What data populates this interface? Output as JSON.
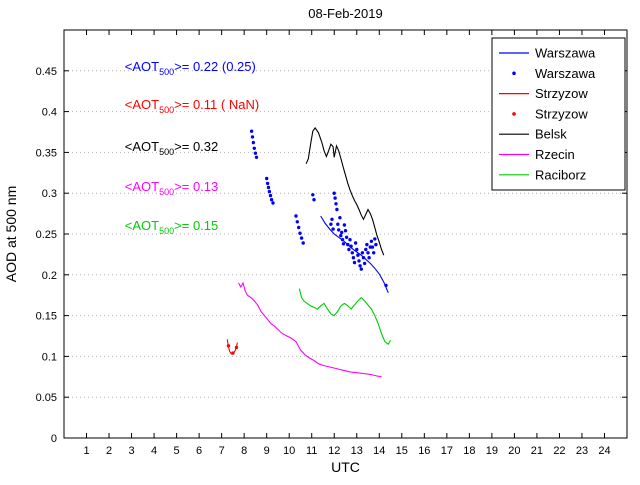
{
  "figure": {
    "title": "08-Feb-2019"
  },
  "chart_data": {
    "type": "line",
    "title": "08-Feb-2019",
    "xlabel": "UTC",
    "ylabel": "AOD at 500 nm",
    "xlim": [
      0,
      25
    ],
    "ylim": [
      0,
      0.5
    ],
    "xticks": [
      1,
      2,
      3,
      4,
      5,
      6,
      7,
      8,
      9,
      10,
      11,
      12,
      13,
      14,
      15,
      16,
      17,
      18,
      19,
      20,
      21,
      22,
      23,
      24
    ],
    "ytick_values": [
      0,
      0.05,
      0.1,
      0.15,
      0.2,
      0.25,
      0.3,
      0.35,
      0.4,
      0.45
    ],
    "ytick_labels": [
      "0",
      "0.05",
      "0.1",
      "0.15",
      "0.2",
      "0.25",
      "0.3",
      "0.35",
      "0.4",
      "0.45"
    ],
    "grid": "horizontal-dotted",
    "grid_color": "#b4b4b4",
    "legend": {
      "position": "top-right",
      "entries": [
        {
          "label": "Warszawa",
          "color": "#0000ff",
          "marker": "line"
        },
        {
          "label": "Warszawa",
          "color": "#0000ff",
          "marker": "dot"
        },
        {
          "label": "Strzyzow",
          "color": "#ff0000",
          "marker": "line"
        },
        {
          "label": "Strzyzow",
          "color": "#ff0000",
          "marker": "dot"
        },
        {
          "label": "Belsk",
          "color": "#000000",
          "marker": "line"
        },
        {
          "label": "Rzecin",
          "color": "#ff00ff",
          "marker": "line"
        },
        {
          "label": "Raciborz",
          "color": "#00cc00",
          "marker": "line"
        }
      ]
    },
    "annotations": [
      {
        "pre": "<AOT",
        "sub": "500",
        "post": ">= 0.22 (0.25)",
        "color": "#0000ff",
        "x": 2.7,
        "y": 0.45
      },
      {
        "pre": "<AOT",
        "sub": "500",
        "post": ">= 0.11 ( NaN)",
        "color": "#ff0000",
        "x": 2.7,
        "y": 0.403
      },
      {
        "pre": "<AOT",
        "sub": "500",
        "post": ">= 0.32",
        "color": "#000000",
        "x": 2.7,
        "y": 0.352
      },
      {
        "pre": "<AOT",
        "sub": "500",
        "post": ">= 0.13",
        "color": "#ff00ff",
        "x": 2.7,
        "y": 0.303
      },
      {
        "pre": "<AOT",
        "sub": "500",
        "post": ">= 0.15",
        "color": "#00cc00",
        "x": 2.7,
        "y": 0.255
      }
    ],
    "series": [
      {
        "name": "Warszawa",
        "type": "line",
        "color": "#0000ff",
        "points": [
          [
            11.4,
            0.272
          ],
          [
            11.6,
            0.263
          ],
          [
            11.8,
            0.256
          ],
          [
            12.0,
            0.25
          ],
          [
            12.2,
            0.246
          ],
          [
            12.4,
            0.242
          ],
          [
            12.6,
            0.237
          ],
          [
            12.8,
            0.232
          ],
          [
            13.0,
            0.228
          ],
          [
            13.2,
            0.224
          ],
          [
            13.4,
            0.219
          ],
          [
            13.6,
            0.214
          ],
          [
            13.8,
            0.208
          ],
          [
            14.0,
            0.201
          ],
          [
            14.2,
            0.191
          ],
          [
            14.4,
            0.178
          ]
        ]
      },
      {
        "name": "Warszawa",
        "type": "scatter",
        "color": "#0000ff",
        "points": [
          [
            8.33,
            0.376
          ],
          [
            8.37,
            0.369
          ],
          [
            8.41,
            0.362
          ],
          [
            8.45,
            0.355
          ],
          [
            8.5,
            0.349
          ],
          [
            8.55,
            0.344
          ],
          [
            9.0,
            0.318
          ],
          [
            9.04,
            0.312
          ],
          [
            9.08,
            0.307
          ],
          [
            9.12,
            0.302
          ],
          [
            9.17,
            0.297
          ],
          [
            9.22,
            0.292
          ],
          [
            9.28,
            0.288
          ],
          [
            10.3,
            0.272
          ],
          [
            10.36,
            0.265
          ],
          [
            10.42,
            0.258
          ],
          [
            10.48,
            0.251
          ],
          [
            10.55,
            0.245
          ],
          [
            10.62,
            0.239
          ],
          [
            11.05,
            0.298
          ],
          [
            11.1,
            0.292
          ],
          [
            11.85,
            0.262
          ],
          [
            11.9,
            0.268
          ],
          [
            11.95,
            0.256
          ],
          [
            12.0,
            0.3
          ],
          [
            12.04,
            0.294
          ],
          [
            12.08,
            0.287
          ],
          [
            12.12,
            0.28
          ],
          [
            12.16,
            0.262
          ],
          [
            12.2,
            0.255
          ],
          [
            12.25,
            0.27
          ],
          [
            12.29,
            0.248
          ],
          [
            12.33,
            0.252
          ],
          [
            12.37,
            0.243
          ],
          [
            12.41,
            0.238
          ],
          [
            12.45,
            0.261
          ],
          [
            12.5,
            0.254
          ],
          [
            12.55,
            0.246
          ],
          [
            12.6,
            0.237
          ],
          [
            12.65,
            0.231
          ],
          [
            12.7,
            0.243
          ],
          [
            12.75,
            0.235
          ],
          [
            12.8,
            0.227
          ],
          [
            12.85,
            0.221
          ],
          [
            12.9,
            0.215
          ],
          [
            12.95,
            0.239
          ],
          [
            13.0,
            0.231
          ],
          [
            13.05,
            0.224
          ],
          [
            13.1,
            0.217
          ],
          [
            13.15,
            0.211
          ],
          [
            13.2,
            0.207
          ],
          [
            13.25,
            0.227
          ],
          [
            13.3,
            0.221
          ],
          [
            13.35,
            0.214
          ],
          [
            13.4,
            0.231
          ],
          [
            13.45,
            0.237
          ],
          [
            13.5,
            0.227
          ],
          [
            13.55,
            0.221
          ],
          [
            13.6,
            0.234
          ],
          [
            13.65,
            0.241
          ],
          [
            13.7,
            0.234
          ],
          [
            13.75,
            0.227
          ],
          [
            13.8,
            0.244
          ],
          [
            13.85,
            0.237
          ],
          [
            14.3,
            0.187
          ]
        ]
      },
      {
        "name": "Strzyzow",
        "type": "line",
        "color": "#ff0000",
        "points": [
          [
            7.25,
            0.121
          ],
          [
            7.3,
            0.112
          ],
          [
            7.36,
            0.106
          ],
          [
            7.44,
            0.103
          ],
          [
            7.52,
            0.104
          ],
          [
            7.6,
            0.107
          ],
          [
            7.66,
            0.112
          ],
          [
            7.7,
            0.117
          ]
        ]
      },
      {
        "name": "Strzyzow",
        "type": "scatter",
        "color": "#ff0000",
        "points": [
          [
            7.3,
            0.113
          ],
          [
            7.5,
            0.104
          ],
          [
            7.66,
            0.111
          ]
        ]
      },
      {
        "name": "Belsk",
        "type": "line",
        "color": "#000000",
        "points": [
          [
            10.75,
            0.336
          ],
          [
            10.85,
            0.342
          ],
          [
            10.95,
            0.36
          ],
          [
            11.05,
            0.376
          ],
          [
            11.15,
            0.38
          ],
          [
            11.3,
            0.374
          ],
          [
            11.45,
            0.362
          ],
          [
            11.55,
            0.352
          ],
          [
            11.65,
            0.345
          ],
          [
            11.75,
            0.352
          ],
          [
            11.85,
            0.36
          ],
          [
            11.95,
            0.357
          ],
          [
            12.0,
            0.344
          ],
          [
            12.1,
            0.358
          ],
          [
            12.2,
            0.352
          ],
          [
            12.3,
            0.342
          ],
          [
            12.4,
            0.332
          ],
          [
            12.5,
            0.322
          ],
          [
            12.6,
            0.312
          ],
          [
            12.7,
            0.304
          ],
          [
            12.8,
            0.297
          ],
          [
            12.9,
            0.291
          ],
          [
            13.0,
            0.286
          ],
          [
            13.1,
            0.28
          ],
          [
            13.2,
            0.273
          ],
          [
            13.3,
            0.268
          ],
          [
            13.4,
            0.274
          ],
          [
            13.5,
            0.28
          ],
          [
            13.6,
            0.275
          ],
          [
            13.7,
            0.268
          ],
          [
            13.8,
            0.258
          ],
          [
            13.9,
            0.248
          ],
          [
            14.0,
            0.24
          ],
          [
            14.1,
            0.231
          ],
          [
            14.2,
            0.224
          ]
        ]
      },
      {
        "name": "Rzecin",
        "type": "line",
        "color": "#ff00ff",
        "points": [
          [
            7.75,
            0.19
          ],
          [
            7.85,
            0.185
          ],
          [
            7.95,
            0.19
          ],
          [
            8.05,
            0.18
          ],
          [
            8.15,
            0.175
          ],
          [
            8.3,
            0.172
          ],
          [
            8.45,
            0.168
          ],
          [
            8.6,
            0.163
          ],
          [
            8.75,
            0.155
          ],
          [
            8.9,
            0.15
          ],
          [
            9.05,
            0.145
          ],
          [
            9.2,
            0.14
          ],
          [
            9.35,
            0.137
          ],
          [
            9.5,
            0.133
          ],
          [
            9.7,
            0.128
          ],
          [
            9.9,
            0.125
          ],
          [
            10.1,
            0.122
          ],
          [
            10.3,
            0.118
          ],
          [
            10.5,
            0.108
          ],
          [
            10.7,
            0.102
          ],
          [
            10.9,
            0.098
          ],
          [
            11.1,
            0.095
          ],
          [
            11.3,
            0.091
          ],
          [
            11.5,
            0.089
          ],
          [
            11.8,
            0.087
          ],
          [
            12.1,
            0.085
          ],
          [
            12.4,
            0.083
          ],
          [
            12.7,
            0.081
          ],
          [
            13.0,
            0.08
          ],
          [
            13.3,
            0.079
          ],
          [
            13.6,
            0.078
          ],
          [
            13.9,
            0.076
          ],
          [
            14.1,
            0.075
          ]
        ]
      },
      {
        "name": "Raciborz",
        "type": "line",
        "color": "#00cc00",
        "points": [
          [
            10.45,
            0.183
          ],
          [
            10.55,
            0.172
          ],
          [
            10.65,
            0.168
          ],
          [
            10.8,
            0.165
          ],
          [
            10.95,
            0.162
          ],
          [
            11.1,
            0.16
          ],
          [
            11.25,
            0.158
          ],
          [
            11.4,
            0.162
          ],
          [
            11.55,
            0.165
          ],
          [
            11.7,
            0.158
          ],
          [
            11.85,
            0.152
          ],
          [
            12.0,
            0.15
          ],
          [
            12.15,
            0.155
          ],
          [
            12.3,
            0.162
          ],
          [
            12.45,
            0.165
          ],
          [
            12.6,
            0.162
          ],
          [
            12.75,
            0.158
          ],
          [
            12.9,
            0.163
          ],
          [
            13.05,
            0.168
          ],
          [
            13.2,
            0.172
          ],
          [
            13.35,
            0.168
          ],
          [
            13.5,
            0.163
          ],
          [
            13.65,
            0.158
          ],
          [
            13.8,
            0.15
          ],
          [
            13.95,
            0.14
          ],
          [
            14.1,
            0.128
          ],
          [
            14.25,
            0.118
          ],
          [
            14.4,
            0.115
          ],
          [
            14.5,
            0.12
          ]
        ]
      }
    ]
  }
}
